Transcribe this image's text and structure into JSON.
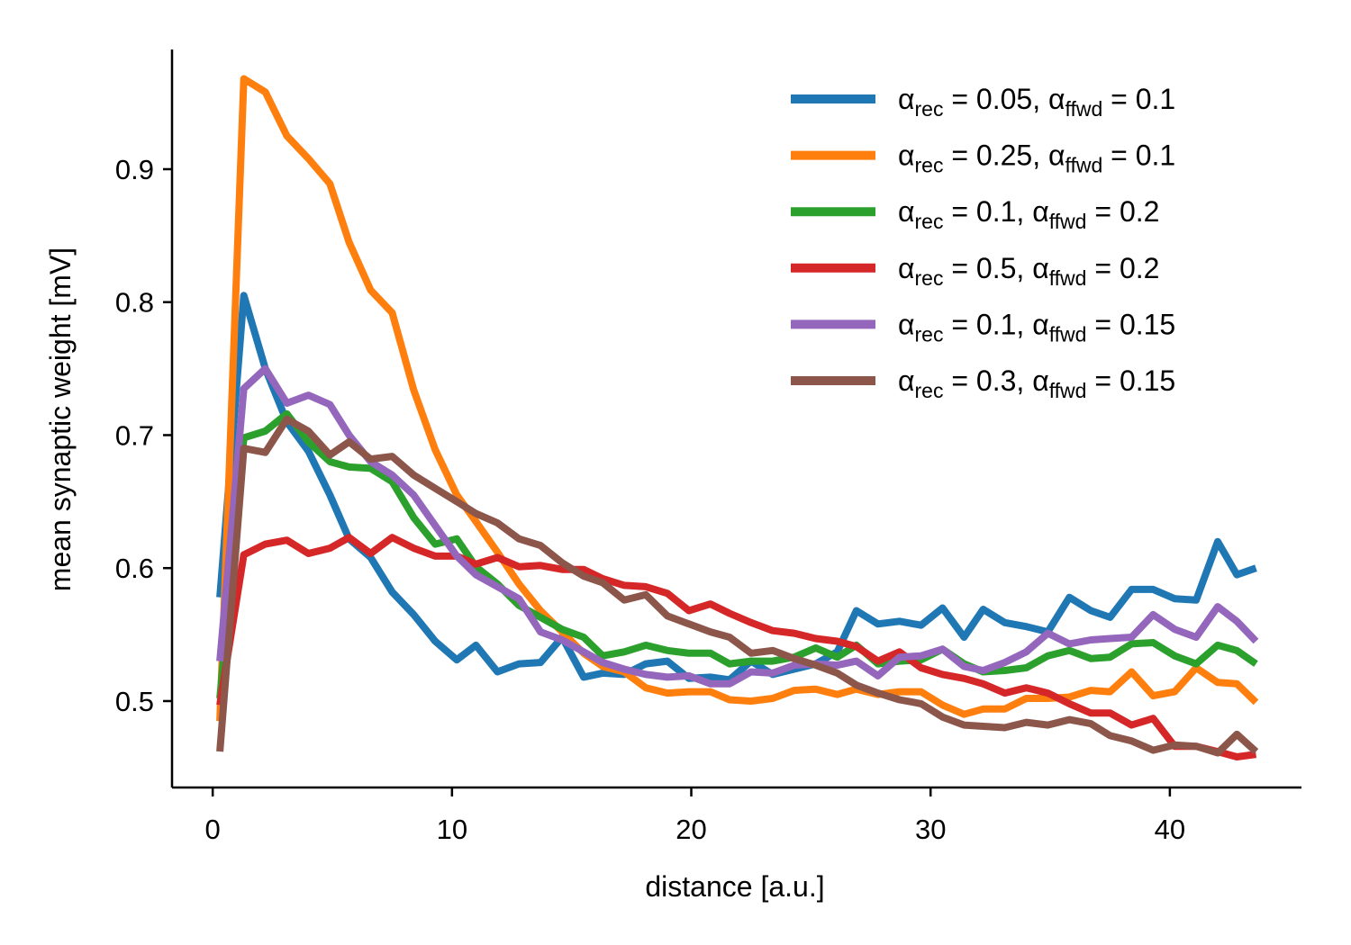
{
  "chart_data": {
    "type": "line",
    "title": "",
    "xlabel": "distance [a.u.]",
    "ylabel": "mean synaptic weight [mV]",
    "xlim": [
      -1.7,
      45.5
    ],
    "ylim": [
      0.435,
      0.99
    ],
    "xticks": [
      0,
      10,
      20,
      30,
      40
    ],
    "yticks": [
      0.5,
      0.6,
      0.7,
      0.8,
      0.9
    ],
    "xtick_labels": [
      "0",
      "10",
      "20",
      "30",
      "40"
    ],
    "ytick_labels": [
      "0.5",
      "0.6",
      "0.7",
      "0.8",
      "0.9"
    ],
    "grid": false,
    "legend_position": "top-right",
    "x": [
      0.3,
      1.3,
      2.2,
      3.1,
      4.0,
      4.9,
      5.7,
      6.6,
      7.5,
      8.4,
      9.3,
      10.2,
      11.0,
      11.9,
      12.8,
      13.7,
      14.6,
      15.5,
      16.3,
      17.2,
      18.1,
      19.0,
      19.9,
      20.8,
      21.6,
      22.5,
      23.4,
      24.3,
      25.2,
      26.1,
      26.9,
      27.8,
      28.7,
      29.6,
      30.5,
      31.4,
      32.2,
      33.1,
      34.0,
      34.9,
      35.8,
      36.7,
      37.5,
      38.4,
      39.3,
      40.2,
      41.1,
      42.0,
      42.8,
      43.6
    ],
    "series": [
      {
        "name_parts": {
          "pre": "α",
          "sub1": "rec",
          "mid": " = 0.05, α",
          "sub2": "ffwd",
          "post": " = 0.1"
        },
        "color": "#1f77b4",
        "values": [
          0.578,
          0.805,
          0.75,
          0.71,
          0.688,
          0.655,
          0.622,
          0.608,
          0.582,
          0.565,
          0.545,
          0.531,
          0.542,
          0.522,
          0.528,
          0.529,
          0.548,
          0.518,
          0.521,
          0.52,
          0.528,
          0.53,
          0.517,
          0.518,
          0.516,
          0.53,
          0.52,
          0.524,
          0.528,
          0.537,
          0.568,
          0.558,
          0.56,
          0.557,
          0.57,
          0.548,
          0.569,
          0.559,
          0.556,
          0.552,
          0.578,
          0.568,
          0.563,
          0.584,
          0.584,
          0.577,
          0.576,
          0.62,
          0.595,
          0.6
        ]
      },
      {
        "name_parts": {
          "pre": "α",
          "sub1": "rec",
          "mid": " = 0.25, α",
          "sub2": "ffwd",
          "post": " = 0.1"
        },
        "color": "#ff7f0e",
        "values": [
          0.485,
          0.968,
          0.958,
          0.925,
          0.908,
          0.889,
          0.845,
          0.809,
          0.792,
          0.734,
          0.689,
          0.655,
          0.635,
          0.612,
          0.588,
          0.568,
          0.552,
          0.536,
          0.526,
          0.522,
          0.51,
          0.506,
          0.507,
          0.507,
          0.501,
          0.5,
          0.502,
          0.508,
          0.509,
          0.505,
          0.509,
          0.505,
          0.507,
          0.507,
          0.497,
          0.49,
          0.494,
          0.494,
          0.502,
          0.502,
          0.503,
          0.508,
          0.507,
          0.522,
          0.504,
          0.507,
          0.525,
          0.514,
          0.513,
          0.499
        ]
      },
      {
        "name_parts": {
          "pre": "α",
          "sub1": "rec",
          "mid": " = 0.1, α",
          "sub2": "ffwd",
          "post": " = 0.2"
        },
        "color": "#2ca02c",
        "values": [
          0.502,
          0.698,
          0.703,
          0.716,
          0.695,
          0.68,
          0.676,
          0.675,
          0.665,
          0.638,
          0.618,
          0.622,
          0.601,
          0.588,
          0.572,
          0.563,
          0.554,
          0.548,
          0.534,
          0.537,
          0.542,
          0.538,
          0.536,
          0.536,
          0.528,
          0.53,
          0.53,
          0.533,
          0.54,
          0.533,
          0.542,
          0.528,
          0.53,
          0.531,
          0.539,
          0.528,
          0.522,
          0.523,
          0.525,
          0.534,
          0.538,
          0.532,
          0.533,
          0.543,
          0.544,
          0.534,
          0.528,
          0.542,
          0.538,
          0.528
        ]
      },
      {
        "name_parts": {
          "pre": "α",
          "sub1": "rec",
          "mid": " = 0.5, α",
          "sub2": "ffwd",
          "post": " = 0.2"
        },
        "color": "#d62728",
        "values": [
          0.497,
          0.61,
          0.618,
          0.621,
          0.611,
          0.615,
          0.623,
          0.611,
          0.623,
          0.615,
          0.609,
          0.609,
          0.603,
          0.608,
          0.601,
          0.602,
          0.599,
          0.599,
          0.592,
          0.587,
          0.586,
          0.581,
          0.568,
          0.573,
          0.566,
          0.559,
          0.553,
          0.551,
          0.547,
          0.545,
          0.541,
          0.53,
          0.537,
          0.525,
          0.52,
          0.517,
          0.513,
          0.506,
          0.51,
          0.506,
          0.498,
          0.491,
          0.491,
          0.482,
          0.487,
          0.466,
          0.466,
          0.462,
          0.458,
          0.46
        ]
      },
      {
        "name_parts": {
          "pre": "α",
          "sub1": "rec",
          "mid": " = 0.1, α",
          "sub2": "ffwd",
          "post": " = 0.15"
        },
        "color": "#9467bd",
        "values": [
          0.53,
          0.735,
          0.75,
          0.724,
          0.73,
          0.723,
          0.7,
          0.68,
          0.67,
          0.655,
          0.632,
          0.609,
          0.595,
          0.586,
          0.577,
          0.552,
          0.546,
          0.537,
          0.529,
          0.524,
          0.52,
          0.518,
          0.519,
          0.513,
          0.513,
          0.522,
          0.521,
          0.527,
          0.528,
          0.527,
          0.53,
          0.519,
          0.533,
          0.534,
          0.539,
          0.526,
          0.523,
          0.529,
          0.537,
          0.551,
          0.543,
          0.546,
          0.547,
          0.548,
          0.565,
          0.554,
          0.548,
          0.571,
          0.56,
          0.545
        ]
      },
      {
        "name_parts": {
          "pre": "α",
          "sub1": "rec",
          "mid": " = 0.3, α",
          "sub2": "ffwd",
          "post": " = 0.15"
        },
        "color": "#8c564b",
        "values": [
          0.462,
          0.69,
          0.687,
          0.712,
          0.703,
          0.685,
          0.695,
          0.682,
          0.684,
          0.67,
          0.66,
          0.65,
          0.641,
          0.634,
          0.622,
          0.617,
          0.604,
          0.594,
          0.589,
          0.576,
          0.58,
          0.564,
          0.558,
          0.552,
          0.548,
          0.536,
          0.538,
          0.532,
          0.527,
          0.521,
          0.512,
          0.506,
          0.501,
          0.498,
          0.488,
          0.482,
          0.481,
          0.48,
          0.484,
          0.482,
          0.486,
          0.483,
          0.474,
          0.47,
          0.463,
          0.467,
          0.466,
          0.461,
          0.475,
          0.462
        ]
      }
    ]
  }
}
